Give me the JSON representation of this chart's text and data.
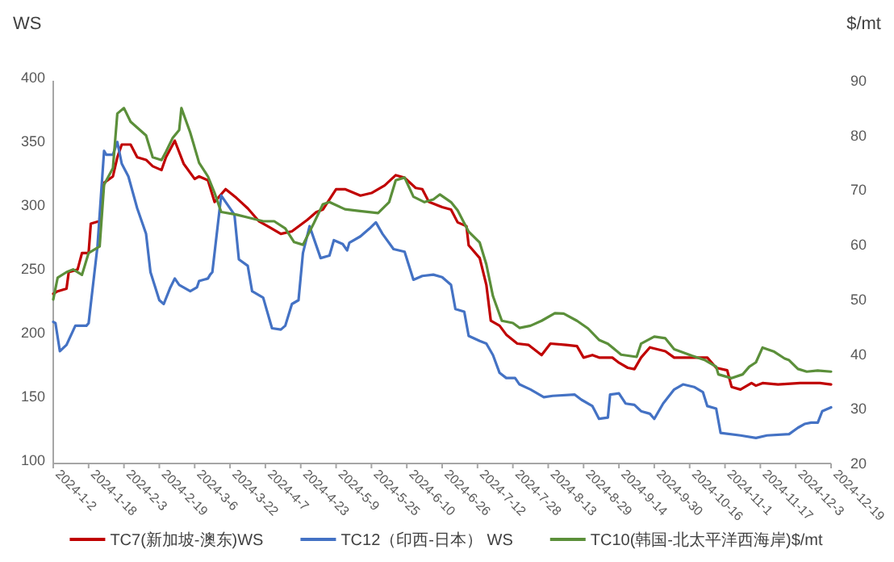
{
  "chart_data": {
    "type": "line",
    "ylabel": "WS",
    "y2label": "$/mt",
    "xlim": [
      "2024-01-02",
      "2024-12-19"
    ],
    "xticks": [
      {
        "value": "2024-01-02",
        "label": "2024-1-2"
      },
      {
        "value": "2024-01-18",
        "label": "2024-1-18"
      },
      {
        "value": "2024-02-03",
        "label": "2024-2-3"
      },
      {
        "value": "2024-02-19",
        "label": "2024-2-19"
      },
      {
        "value": "2024-03-06",
        "label": "2024-3-6"
      },
      {
        "value": "2024-03-22",
        "label": "2024-3-22"
      },
      {
        "value": "2024-04-07",
        "label": "2024-4-7"
      },
      {
        "value": "2024-04-23",
        "label": "2024-4-23"
      },
      {
        "value": "2024-05-09",
        "label": "2024-5-9"
      },
      {
        "value": "2024-05-25",
        "label": "2024-5-25"
      },
      {
        "value": "2024-06-10",
        "label": "2024-6-10"
      },
      {
        "value": "2024-06-26",
        "label": "2024-6-26"
      },
      {
        "value": "2024-07-12",
        "label": "2024-7-12"
      },
      {
        "value": "2024-07-28",
        "label": "2024-7-28"
      },
      {
        "value": "2024-08-13",
        "label": "2024-8-13"
      },
      {
        "value": "2024-08-29",
        "label": "2024-8-29"
      },
      {
        "value": "2024-09-14",
        "label": "2024-9-14"
      },
      {
        "value": "2024-09-30",
        "label": "2024-9-30"
      },
      {
        "value": "2024-10-16",
        "label": "2024-10-16"
      },
      {
        "value": "2024-11-01",
        "label": "2024-11-1"
      },
      {
        "value": "2024-11-17",
        "label": "2024-11-17"
      },
      {
        "value": "2024-12-03",
        "label": "2024-12-3"
      },
      {
        "value": "2024-12-19",
        "label": "2024-12-19"
      }
    ],
    "ylim": [
      100,
      400
    ],
    "yticks": [
      100,
      150,
      200,
      250,
      300,
      350,
      400
    ],
    "y2lim": [
      20,
      90
    ],
    "y2ticks": [
      20,
      30,
      40,
      50,
      60,
      70,
      80,
      90
    ],
    "grid": false,
    "legend": "bottom",
    "marker": "none",
    "line_style": "solid",
    "series": [
      {
        "name": "TC7(新加坡-澳东)WS",
        "color": "#c00000",
        "x": [
          "2024-01-02",
          "2024-01-04",
          "2024-01-08",
          "2024-01-09",
          "2024-01-13",
          "2024-01-15",
          "2024-01-18",
          "2024-01-19",
          "2024-01-23",
          "2024-01-25",
          "2024-01-29",
          "2024-01-31",
          "2024-02-02",
          "2024-02-06",
          "2024-02-09",
          "2024-02-13",
          "2024-02-16",
          "2024-02-20",
          "2024-02-22",
          "2024-02-26",
          "2024-03-01",
          "2024-03-06",
          "2024-03-08",
          "2024-03-12",
          "2024-03-15",
          "2024-03-20",
          "2024-03-25",
          "2024-03-30",
          "2024-04-04",
          "2024-04-09",
          "2024-04-14",
          "2024-04-19",
          "2024-04-26",
          "2024-04-30",
          "2024-05-03",
          "2024-05-09",
          "2024-05-13",
          "2024-05-20",
          "2024-05-25",
          "2024-05-31",
          "2024-06-05",
          "2024-06-09",
          "2024-06-14",
          "2024-06-17",
          "2024-06-20",
          "2024-06-26",
          "2024-06-30",
          "2024-07-03",
          "2024-07-07",
          "2024-07-08",
          "2024-07-13",
          "2024-07-16",
          "2024-07-18",
          "2024-07-22",
          "2024-07-25",
          "2024-07-30",
          "2024-08-04",
          "2024-08-10",
          "2024-08-14",
          "2024-08-21",
          "2024-08-26",
          "2024-08-29",
          "2024-09-02",
          "2024-09-05",
          "2024-09-11",
          "2024-09-14",
          "2024-09-18",
          "2024-09-21",
          "2024-09-24",
          "2024-09-28",
          "2024-10-05",
          "2024-10-09",
          "2024-10-17",
          "2024-10-24",
          "2024-10-28",
          "2024-11-02",
          "2024-11-04",
          "2024-11-08",
          "2024-11-13",
          "2024-11-15",
          "2024-11-18",
          "2024-11-25",
          "2024-12-05",
          "2024-12-14",
          "2024-12-19"
        ],
        "values": [
          233,
          235,
          237,
          250,
          252,
          265,
          265,
          288,
          290,
          320,
          325,
          340,
          350,
          350,
          340,
          338,
          333,
          330,
          340,
          353,
          335,
          323,
          325,
          322,
          305,
          315,
          308,
          300,
          290,
          285,
          280,
          282,
          291,
          297,
          299,
          315,
          315,
          310,
          312,
          318,
          326,
          324,
          316,
          315,
          305,
          301,
          299,
          289,
          286,
          271,
          261,
          240,
          212,
          208,
          201,
          194,
          193,
          185,
          194,
          193,
          192,
          183,
          185,
          183,
          183,
          179,
          175,
          174,
          183,
          191,
          188,
          183,
          183,
          183,
          175,
          173,
          160,
          158,
          163,
          161,
          163,
          162,
          163,
          163,
          162
        ]
      },
      {
        "name": "TC12（印西-日本） WS",
        "color": "#4472c4",
        "x": [
          "2024-01-02",
          "2024-01-03",
          "2024-01-05",
          "2024-01-08",
          "2024-01-12",
          "2024-01-17",
          "2024-01-18",
          "2024-01-22",
          "2024-01-25",
          "2024-01-26",
          "2024-01-29",
          "2024-01-31",
          "2024-02-02",
          "2024-02-05",
          "2024-02-09",
          "2024-02-13",
          "2024-02-15",
          "2024-02-19",
          "2024-02-21",
          "2024-02-24",
          "2024-02-26",
          "2024-02-28",
          "2024-03-04",
          "2024-03-07",
          "2024-03-08",
          "2024-03-12",
          "2024-03-13",
          "2024-03-14",
          "2024-03-18",
          "2024-03-20",
          "2024-03-24",
          "2024-03-26",
          "2024-03-30",
          "2024-04-01",
          "2024-04-06",
          "2024-04-10",
          "2024-04-14",
          "2024-04-16",
          "2024-04-19",
          "2024-04-22",
          "2024-04-24",
          "2024-04-27",
          "2024-05-02",
          "2024-05-06",
          "2024-05-08",
          "2024-05-12",
          "2024-05-14",
          "2024-05-15",
          "2024-05-20",
          "2024-05-24",
          "2024-05-27",
          "2024-05-30",
          "2024-06-04",
          "2024-06-09",
          "2024-06-13",
          "2024-06-17",
          "2024-06-22",
          "2024-06-26",
          "2024-06-30",
          "2024-07-02",
          "2024-07-06",
          "2024-07-08",
          "2024-07-13",
          "2024-07-16",
          "2024-07-19",
          "2024-07-22",
          "2024-07-25",
          "2024-07-29",
          "2024-07-31",
          "2024-08-05",
          "2024-08-11",
          "2024-08-15",
          "2024-08-25",
          "2024-08-28",
          "2024-09-02",
          "2024-09-05",
          "2024-09-09",
          "2024-09-10",
          "2024-09-14",
          "2024-09-17",
          "2024-09-21",
          "2024-09-24",
          "2024-09-28",
          "2024-09-30",
          "2024-10-04",
          "2024-10-09",
          "2024-10-13",
          "2024-10-18",
          "2024-10-22",
          "2024-10-24",
          "2024-10-28",
          "2024-10-30",
          "2024-11-08",
          "2024-11-15",
          "2024-11-20",
          "2024-11-30",
          "2024-12-04",
          "2024-12-07",
          "2024-12-10",
          "2024-12-13",
          "2024-12-15",
          "2024-12-19"
        ],
        "values": [
          211,
          210,
          188,
          193,
          208,
          208,
          210,
          270,
          345,
          342,
          342,
          352,
          335,
          325,
          300,
          280,
          250,
          228,
          225,
          238,
          245,
          240,
          235,
          238,
          243,
          245,
          248,
          250,
          310,
          305,
          295,
          260,
          255,
          235,
          230,
          206,
          205,
          208,
          225,
          228,
          265,
          286,
          261,
          263,
          275,
          272,
          267,
          273,
          278,
          284,
          289,
          280,
          268,
          266,
          244,
          247,
          248,
          246,
          240,
          221,
          219,
          200,
          196,
          194,
          185,
          171,
          167,
          167,
          162,
          158,
          152,
          153,
          154,
          150,
          145,
          135,
          136,
          154,
          155,
          147,
          146,
          141,
          139,
          135,
          147,
          158,
          162,
          160,
          156,
          145,
          143,
          124,
          122,
          120,
          122,
          123,
          128,
          131,
          132,
          132,
          141,
          144
        ]
      },
      {
        "name": "TC10(韩国-北太平洋西海岸)$/mt",
        "color": "#5b8f3a",
        "axis": "y2",
        "x": [
          "2024-01-02",
          "2024-01-04",
          "2024-01-08",
          "2024-01-11",
          "2024-01-15",
          "2024-01-18",
          "2024-01-23",
          "2024-01-25",
          "2024-01-29",
          "2024-01-31",
          "2024-02-03",
          "2024-02-06",
          "2024-02-13",
          "2024-02-16",
          "2024-02-20",
          "2024-02-22",
          "2024-02-25",
          "2024-02-28",
          "2024-02-29",
          "2024-03-04",
          "2024-03-08",
          "2024-03-12",
          "2024-03-15",
          "2024-03-18",
          "2024-03-25",
          "2024-03-30",
          "2024-04-06",
          "2024-04-11",
          "2024-04-16",
          "2024-04-20",
          "2024-04-24",
          "2024-04-29",
          "2024-05-03",
          "2024-05-06",
          "2024-05-13",
          "2024-05-19",
          "2024-05-28",
          "2024-06-02",
          "2024-06-05",
          "2024-06-09",
          "2024-06-13",
          "2024-06-18",
          "2024-06-22",
          "2024-06-25",
          "2024-06-30",
          "2024-07-03",
          "2024-07-08",
          "2024-07-13",
          "2024-07-16",
          "2024-07-19",
          "2024-07-23",
          "2024-07-28",
          "2024-07-31",
          "2024-08-05",
          "2024-08-10",
          "2024-08-16",
          "2024-08-20",
          "2024-08-26",
          "2024-08-31",
          "2024-09-05",
          "2024-09-09",
          "2024-09-15",
          "2024-09-22",
          "2024-09-24",
          "2024-09-30",
          "2024-10-05",
          "2024-10-09",
          "2024-10-17",
          "2024-10-23",
          "2024-10-28",
          "2024-10-29",
          "2024-11-04",
          "2024-11-09",
          "2024-11-12",
          "2024-11-15",
          "2024-11-18",
          "2024-11-23",
          "2024-11-28",
          "2024-11-30",
          "2024-12-04",
          "2024-12-08",
          "2024-12-13",
          "2024-12-19"
        ],
        "values": [
          50,
          54,
          55,
          55.5,
          54.5,
          58.5,
          59.7,
          71,
          74,
          84,
          85,
          82.5,
          80,
          76,
          75.5,
          77,
          79.5,
          81,
          85,
          80.5,
          75,
          72.5,
          69.5,
          66,
          65.5,
          65,
          64.3,
          64.3,
          63,
          60.5,
          60,
          64,
          67.4,
          67.8,
          66.5,
          66.2,
          65.8,
          67.8,
          71.8,
          72.3,
          68.8,
          67.8,
          68.3,
          69.2,
          67.8,
          66.3,
          62.4,
          60.4,
          56.4,
          50.6,
          46.1,
          45.7,
          44.8,
          45.2,
          46.1,
          47.5,
          47.4,
          46.1,
          44.7,
          42.6,
          41.9,
          39.9,
          39.5,
          41.9,
          43.2,
          42.9,
          40.9,
          39.7,
          38.9,
          37.7,
          36.3,
          35.6,
          36.3,
          37.7,
          38.5,
          41.2,
          40.5,
          39.2,
          38.9,
          37.3,
          36.8,
          37,
          36.8
        ]
      }
    ]
  }
}
